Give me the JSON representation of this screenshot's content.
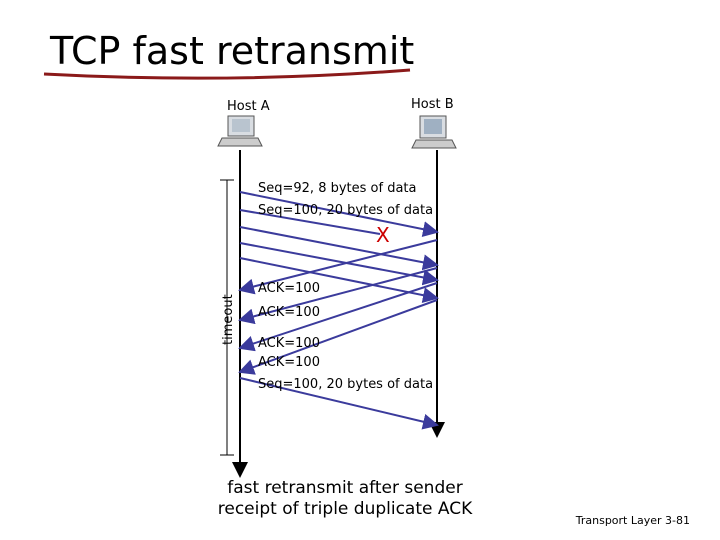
{
  "title": "TCP fast retransmit",
  "hosts": {
    "a": "Host A",
    "b": "Host B"
  },
  "messages": {
    "seq92": "Seq=92, 8 bytes of data",
    "seq100": "Seq=100, 20 bytes of data",
    "lost": "X",
    "ack1": "ACK=100",
    "ack2": "ACK=100",
    "ack3": "ACK=100",
    "ack4": "ACK=100",
    "retransmit": "Seq=100, 20 bytes of data"
  },
  "timeout": "timeout",
  "caption": [
    "fast retransmit after sender",
    "receipt of triple duplicate ACK"
  ],
  "footer": "Transport Layer 3-81"
}
